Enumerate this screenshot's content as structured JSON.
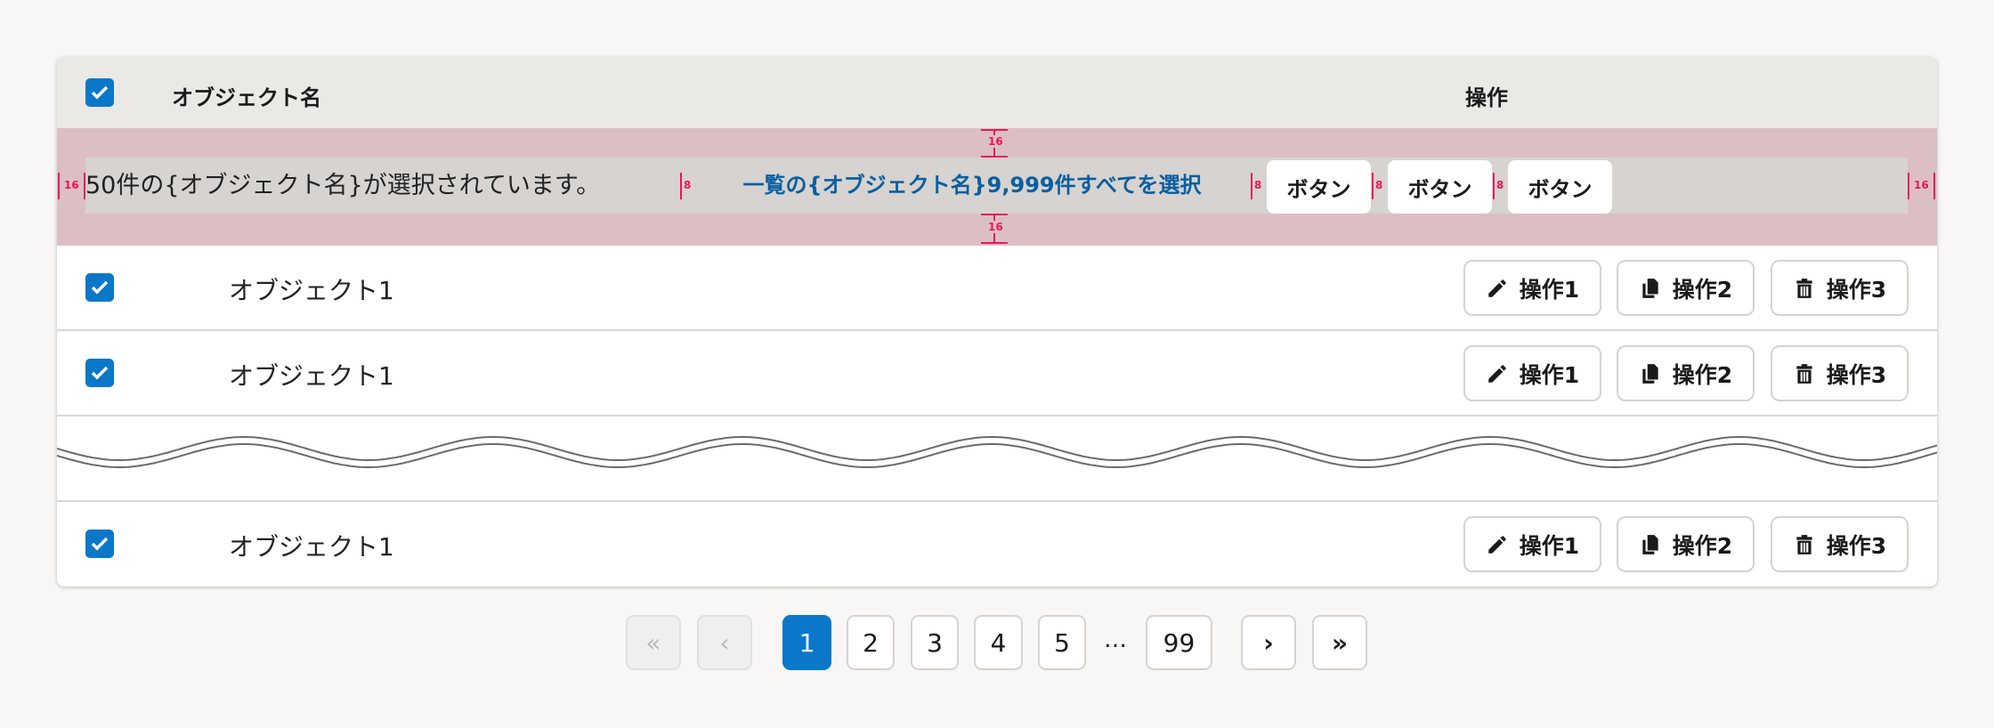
{
  "header": {
    "select_all_checked": true,
    "name_column": "オブジェクト名",
    "actions_column": "操作"
  },
  "selection_bar": {
    "message": "50件の{オブジェクト名}が選択されています。",
    "select_all_link": "一覧の{オブジェクト名}9,999件すべてを選択",
    "buttons": [
      "ボタン",
      "ボタン",
      "ボタン"
    ],
    "spacing_annotations": {
      "top": "16",
      "bottom": "16",
      "left": "16",
      "right": "16",
      "gap": "8"
    }
  },
  "rows": [
    {
      "checked": true,
      "name": "オブジェクト1",
      "actions": [
        "操作1",
        "操作2",
        "操作3"
      ]
    },
    {
      "checked": true,
      "name": "オブジェクト1",
      "actions": [
        "操作1",
        "操作2",
        "操作3"
      ]
    },
    {
      "checked": true,
      "name": "オブジェクト1",
      "actions": [
        "操作1",
        "操作2",
        "操作3"
      ]
    }
  ],
  "action_icons": [
    "pencil-icon",
    "copy-icon",
    "trash-icon"
  ],
  "pagination": {
    "first": "«",
    "prev": "‹",
    "pages": [
      "1",
      "2",
      "3",
      "4",
      "5"
    ],
    "ellipsis": "…",
    "last_page": "99",
    "next": "›",
    "last": "»",
    "current": "1"
  },
  "colors": {
    "accent": "#0b77c9",
    "selection_bar": "#dcbfc4",
    "annotation": "#e8175d",
    "link": "#0a5fa0"
  }
}
